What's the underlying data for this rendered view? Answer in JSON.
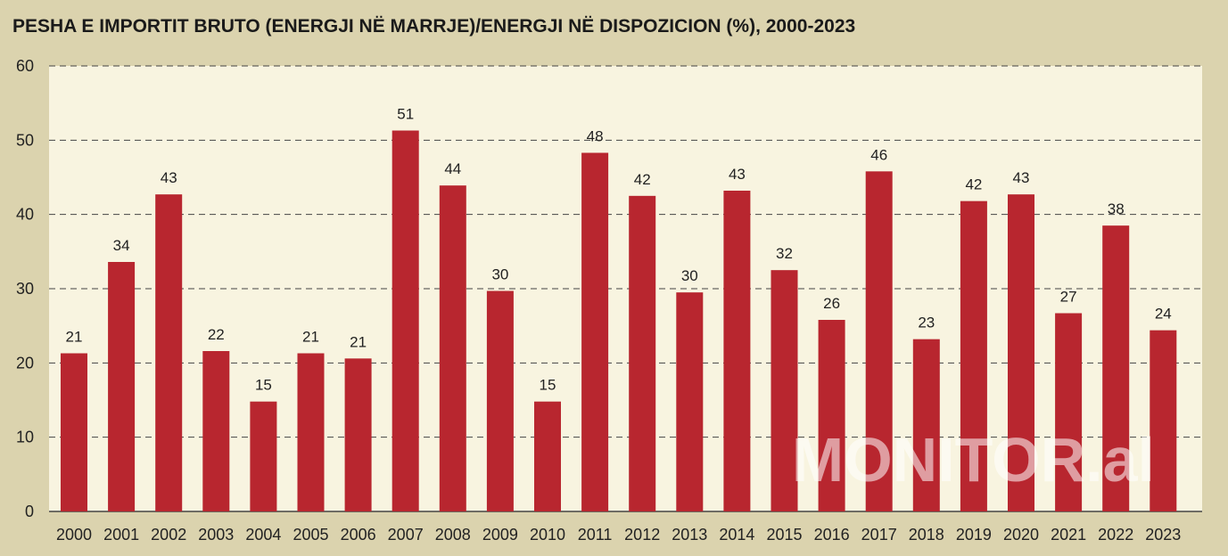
{
  "chart_data": {
    "type": "bar",
    "title": "PESHA E IMPORTIT BRUTO (ENERGJI NË MARRJE)/ENERGJI NË DISPOZICION (%), 2000-2023",
    "xlabel": "",
    "ylabel": "",
    "ylim": [
      0,
      60
    ],
    "yticks": [
      "0",
      "10",
      "20",
      "30",
      "40",
      "50",
      "60"
    ],
    "categories": [
      "2000",
      "2001",
      "2002",
      "2003",
      "2004",
      "2005",
      "2006",
      "2007",
      "2008",
      "2009",
      "2010",
      "2011",
      "2012",
      "2013",
      "2014",
      "2015",
      "2016",
      "2017",
      "2018",
      "2019",
      "2020",
      "2021",
      "2022",
      "2023"
    ],
    "values": [
      21.3,
      33.6,
      42.7,
      21.6,
      14.8,
      21.3,
      20.6,
      51.3,
      43.9,
      29.7,
      14.8,
      48.3,
      42.5,
      29.5,
      43.2,
      32.5,
      25.8,
      45.8,
      23.2,
      41.8,
      42.7,
      26.7,
      38.5,
      24.4
    ],
    "labels": [
      "21",
      "34",
      "43",
      "22",
      "15",
      "21",
      "21",
      "51",
      "44",
      "30",
      "15",
      "48",
      "42",
      "30",
      "43",
      "32",
      "26",
      "46",
      "23",
      "42",
      "43",
      "27",
      "38",
      "24"
    ],
    "grid": true,
    "colors": {
      "bar": "#b8262f",
      "plot_bg": "#f8f4e0",
      "page_bg": "#dbd3ae",
      "grid": "#444444"
    }
  },
  "watermark": "MONITOR.al"
}
